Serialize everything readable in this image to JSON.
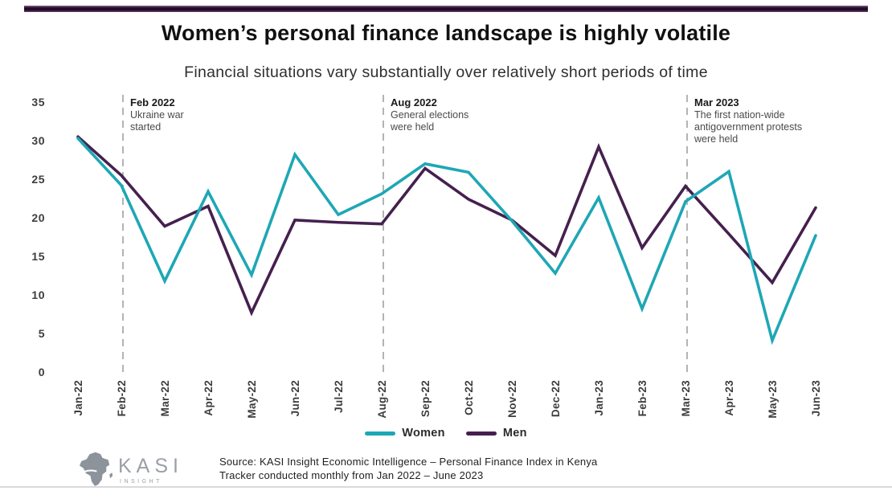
{
  "header": {
    "title": "Women’s personal finance landscape is highly volatile",
    "subtitle": "Financial situations vary substantially over relatively short periods of time"
  },
  "chart_data": {
    "type": "line",
    "x": [
      "Jan-22",
      "Feb-22",
      "Mar-22",
      "Apr-22",
      "May-22",
      "Jun-22",
      "Jul-22",
      "Aug-22",
      "Sep-22",
      "Oct-22",
      "Nov-22",
      "Dec-22",
      "Jan-23",
      "Feb-23",
      "Mar-23",
      "Apr-23",
      "May-23",
      "Jun-23"
    ],
    "series": [
      {
        "name": "Women",
        "color": "#1EA7B5",
        "values": [
          30.3,
          24.2,
          11.8,
          23.4,
          12.6,
          28.2,
          20.4,
          23.1,
          27.0,
          25.9,
          19.6,
          12.8,
          22.6,
          8.2,
          22.1,
          26.0,
          4.1,
          17.7
        ]
      },
      {
        "name": "Men",
        "color": "#45204E",
        "values": [
          30.5,
          25.5,
          18.9,
          21.5,
          7.7,
          19.7,
          19.4,
          19.2,
          26.4,
          22.4,
          19.7,
          15.1,
          29.2,
          16.1,
          24.1,
          17.9,
          11.6,
          21.3
        ]
      }
    ],
    "ylim": [
      0,
      35
    ],
    "yticks": [
      0,
      5,
      10,
      15,
      20,
      25,
      30,
      35
    ],
    "grid": false,
    "legend_position": "bottom",
    "annotations": [
      {
        "x_index": 1,
        "title": "Feb 2022",
        "lines": [
          "Ukraine war",
          "started"
        ]
      },
      {
        "x_index": 7,
        "title": "Aug 2022",
        "lines": [
          "General elections",
          "were held"
        ]
      },
      {
        "x_index": 14,
        "title": "Mar 2023",
        "lines": [
          "The first nation-wide",
          "antigovernment protests",
          "were held"
        ]
      }
    ]
  },
  "footer": {
    "logo": {
      "brand": "KASI",
      "sub": "INSIGHT",
      "icon": "africa-map-icon"
    },
    "source_line1": "Source: KASI Insight Economic Intelligence – Personal Finance Index in Kenya",
    "source_line2": "Tracker conducted monthly from  Jan 2022 – June 2023"
  },
  "colors": {
    "accent_bar": "#240c29",
    "divider": "#d9d9d9",
    "annotation_line": "#b3b3b3"
  }
}
